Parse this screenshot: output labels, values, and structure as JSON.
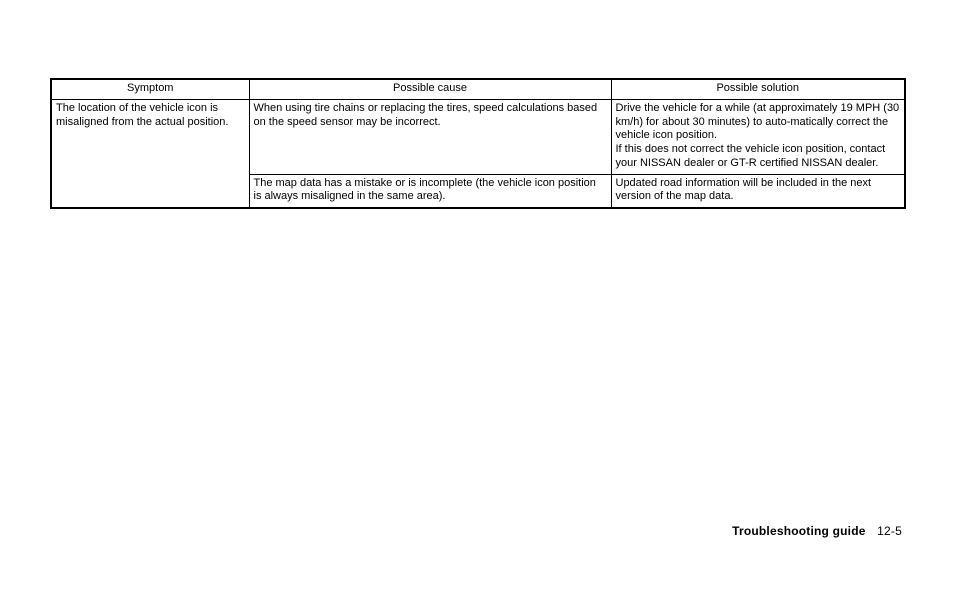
{
  "headers": {
    "symptom": "Symptom",
    "cause": "Possible cause",
    "solution": "Possible solution"
  },
  "rows": {
    "symptom_merged": "The location of the vehicle icon is misaligned from the actual position.",
    "r1": {
      "cause": "When using tire chains or replacing the tires, speed calculations based on the speed sensor may be incorrect.",
      "solution": "Drive the vehicle for a while (at approximately 19 MPH (30 km/h) for about 30 minutes) to auto-matically correct the vehicle icon position.\nIf this does not correct the vehicle icon position, contact your NISSAN dealer or GT-R certified NISSAN dealer."
    },
    "r2": {
      "cause": "The map data has a mistake or is incomplete (the vehicle icon position is always misaligned in the same area).",
      "solution": "Updated road information will be included in the next version of the map data."
    }
  },
  "footer": {
    "label": "Troubleshooting guide",
    "page": "12-5"
  }
}
